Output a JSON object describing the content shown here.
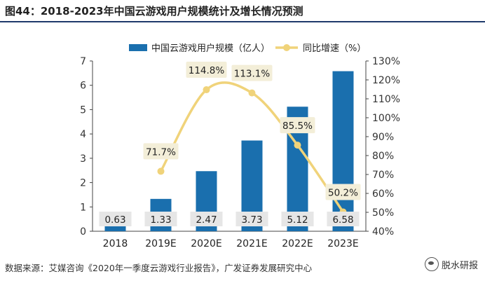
{
  "title": "图44：2018-2023年中国云游戏用户规模统计及增长情况预测",
  "source": "数据来源：艾媒咨询《2020年一季度云游戏行业报告》，广发证券发展研究中心",
  "watermark_text": "脱水研报",
  "icons": {
    "watermark": "wechat-icon"
  },
  "colors": {
    "bar": "#1a6fae",
    "line": "#f0d37a",
    "label_box": "#f3eed8",
    "bar_label_box": "#e6e6e6"
  },
  "chart_data": {
    "type": "bar",
    "categories": [
      "2018",
      "2019E",
      "2020E",
      "2021E",
      "2022E",
      "2023E"
    ],
    "series": [
      {
        "name": "中国云游戏用户规模（亿人）",
        "type": "bar",
        "axis": "left",
        "values": [
          0.63,
          1.33,
          2.47,
          3.73,
          5.12,
          6.58
        ],
        "labels": [
          "0.63",
          "1.33",
          "2.47",
          "3.73",
          "5.12",
          "6.58"
        ]
      },
      {
        "name": "同比增速（%）",
        "type": "line",
        "axis": "right",
        "values": [
          null,
          71.7,
          114.8,
          113.1,
          85.5,
          50.2
        ],
        "labels": [
          "",
          "71.7%",
          "114.8%",
          "113.1%",
          "85.5%",
          "50.2%"
        ]
      }
    ],
    "y_left": {
      "range": [
        0,
        7
      ],
      "ticks": [
        "0",
        "1",
        "2",
        "3",
        "4",
        "5",
        "6",
        "7"
      ]
    },
    "y_right": {
      "range": [
        40,
        130
      ],
      "ticks": [
        "40%",
        "50%",
        "60%",
        "70%",
        "80%",
        "90%",
        "100%",
        "110%",
        "120%",
        "130%"
      ]
    },
    "legend_position": "top",
    "grid": false
  }
}
